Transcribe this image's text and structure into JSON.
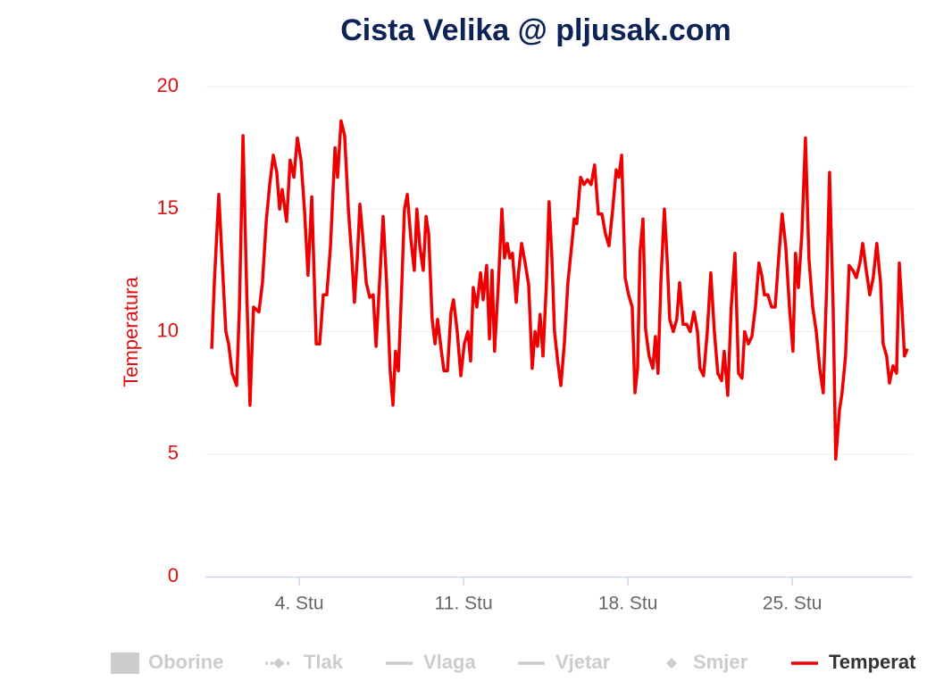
{
  "chart_data": {
    "type": "line",
    "title": "Cista Velika @ pljusak.com",
    "y_label": "Temperatura",
    "xlim": [
      0,
      30.13
    ],
    "xticks": [
      {
        "value": 4,
        "label": "4. Stu"
      },
      {
        "value": 11,
        "label": "11. Stu"
      },
      {
        "value": 18,
        "label": "18. Stu"
      },
      {
        "value": 25,
        "label": "25. Stu"
      }
    ],
    "ylim": [
      0,
      20
    ],
    "yticks": [
      0,
      5,
      10,
      15,
      20
    ],
    "grid": true,
    "legend": "bottom",
    "x": [
      0.27,
      0.38,
      0.57,
      0.76,
      0.87,
      0.99,
      1.14,
      1.33,
      1.45,
      1.6,
      1.75,
      1.9,
      2.05,
      2.28,
      2.43,
      2.59,
      2.74,
      2.89,
      3.04,
      3.16,
      3.27,
      3.46,
      3.61,
      3.77,
      3.92,
      4.07,
      4.22,
      4.37,
      4.53,
      4.72,
      4.87,
      5.02,
      5.17,
      5.33,
      5.52,
      5.63,
      5.78,
      5.93,
      6.09,
      6.24,
      6.35,
      6.47,
      6.58,
      6.69,
      6.85,
      7.0,
      7.15,
      7.27,
      7.42,
      7.57,
      7.72,
      7.87,
      7.99,
      8.1,
      8.22,
      8.37,
      8.48,
      8.6,
      8.75,
      8.9,
      9.01,
      9.13,
      9.28,
      9.4,
      9.51,
      9.66,
      9.78,
      9.89,
      10.04,
      10.16,
      10.31,
      10.46,
      10.57,
      10.73,
      10.88,
      11.03,
      11.18,
      11.3,
      11.41,
      11.56,
      11.72,
      11.83,
      11.98,
      12.1,
      12.21,
      12.32,
      12.48,
      12.63,
      12.74,
      12.86,
      12.97,
      13.08,
      13.24,
      13.35,
      13.47,
      13.62,
      13.77,
      13.92,
      14.04,
      14.15,
      14.26,
      14.38,
      14.53,
      14.64,
      14.76,
      14.87,
      15.02,
      15.14,
      15.29,
      15.44,
      15.6,
      15.71,
      15.82,
      15.98,
      16.13,
      16.28,
      16.43,
      16.58,
      16.74,
      16.89,
      17.04,
      17.19,
      17.35,
      17.5,
      17.61,
      17.73,
      17.88,
      18.03,
      18.18,
      18.3,
      18.41,
      18.52,
      18.64,
      18.75,
      18.9,
      19.06,
      19.17,
      19.28,
      19.4,
      19.55,
      19.67,
      19.78,
      19.93,
      20.08,
      20.2,
      20.35,
      20.5,
      20.65,
      20.81,
      20.96,
      21.07,
      21.22,
      21.38,
      21.53,
      21.68,
      21.83,
      21.99,
      22.1,
      22.25,
      22.4,
      22.56,
      22.71,
      22.86,
      22.97,
      23.13,
      23.28,
      23.43,
      23.58,
      23.7,
      23.81,
      23.96,
      24.12,
      24.27,
      24.42,
      24.57,
      24.72,
      24.88,
      25.03,
      25.14,
      25.26,
      25.41,
      25.56,
      25.71,
      25.87,
      26.02,
      26.17,
      26.32,
      26.47,
      26.59,
      26.74,
      26.85,
      27.01,
      27.12,
      27.27,
      27.42,
      27.58,
      27.73,
      27.88,
      28.0,
      28.15,
      28.3,
      28.45,
      28.6,
      28.76,
      28.87,
      29.02,
      29.14,
      29.29,
      29.44,
      29.56,
      29.67,
      29.78,
      29.9
    ],
    "series": [
      {
        "name": "Oborine",
        "color": "#cccccc",
        "visible": false
      },
      {
        "name": "Tlak",
        "color": "#cccccc",
        "visible": false
      },
      {
        "name": "Vlaga",
        "color": "#cccccc",
        "visible": false
      },
      {
        "name": "Vjetar",
        "color": "#cccccc",
        "visible": false
      },
      {
        "name": "Smjer",
        "color": "#cccccc",
        "visible": false
      },
      {
        "name": "Temperat",
        "color": "#ee0000",
        "visible": true,
        "values": [
          9.3,
          12,
          15.6,
          12,
          10,
          9.5,
          8.3,
          7.8,
          11,
          18,
          12,
          7,
          11,
          10.8,
          12,
          14.5,
          16,
          17.2,
          16.5,
          15,
          15.8,
          14.5,
          17,
          16.3,
          17.9,
          17,
          15,
          12.3,
          15.5,
          9.5,
          9.5,
          11.5,
          11.5,
          13.5,
          17.5,
          16.3,
          18.6,
          18,
          15,
          13,
          11.2,
          13,
          15.2,
          14,
          12,
          11.4,
          11.5,
          9.4,
          12,
          14.7,
          12,
          8.4,
          7,
          9.2,
          8.4,
          12,
          15,
          15.6,
          13.8,
          12.5,
          15,
          13.5,
          12.5,
          14.7,
          14,
          10.5,
          9.5,
          10.5,
          9.3,
          8.4,
          8.4,
          10.8,
          11.3,
          10,
          8.2,
          9.5,
          10,
          8.8,
          11.8,
          11,
          12.4,
          11.3,
          12.7,
          9.7,
          12.5,
          9.2,
          12,
          15,
          13,
          13.6,
          13,
          13.2,
          11.2,
          12.5,
          13.6,
          12.8,
          11.9,
          8.5,
          10,
          9.4,
          10.7,
          9,
          12,
          15.3,
          13,
          10,
          8.7,
          7.8,
          9.5,
          12,
          13.5,
          14.6,
          14.4,
          16.3,
          16,
          16.2,
          16,
          16.8,
          14.8,
          14.8,
          14,
          13.5,
          15,
          16.6,
          16.3,
          17.2,
          12.2,
          11.5,
          11,
          7.5,
          8.5,
          13.3,
          14.6,
          10.1,
          9,
          8.5,
          9.8,
          8.3,
          12,
          15,
          13,
          10.5,
          10,
          10.5,
          12,
          10.3,
          10.3,
          10,
          10.8,
          10,
          8.5,
          8.2,
          10,
          12.4,
          10,
          8.3,
          8,
          9.2,
          7.4,
          11,
          13.2,
          8.3,
          8.1,
          10,
          9.5,
          9.8,
          11,
          12.8,
          12.3,
          11.5,
          11.5,
          11,
          11,
          13,
          14.8,
          13.5,
          11,
          9.2,
          13.2,
          11.8,
          14,
          17.9,
          13,
          11,
          10,
          8.5,
          7.5,
          12,
          16.5,
          11,
          4.8,
          6.8,
          7.5,
          9,
          12.7,
          12.5,
          12.2,
          12.8,
          13.6,
          12.5,
          11.5,
          12.2,
          13.6,
          12,
          9.5,
          9,
          7.9,
          8.6,
          8.3,
          12.8,
          11,
          9,
          9.3
        ]
      }
    ]
  }
}
